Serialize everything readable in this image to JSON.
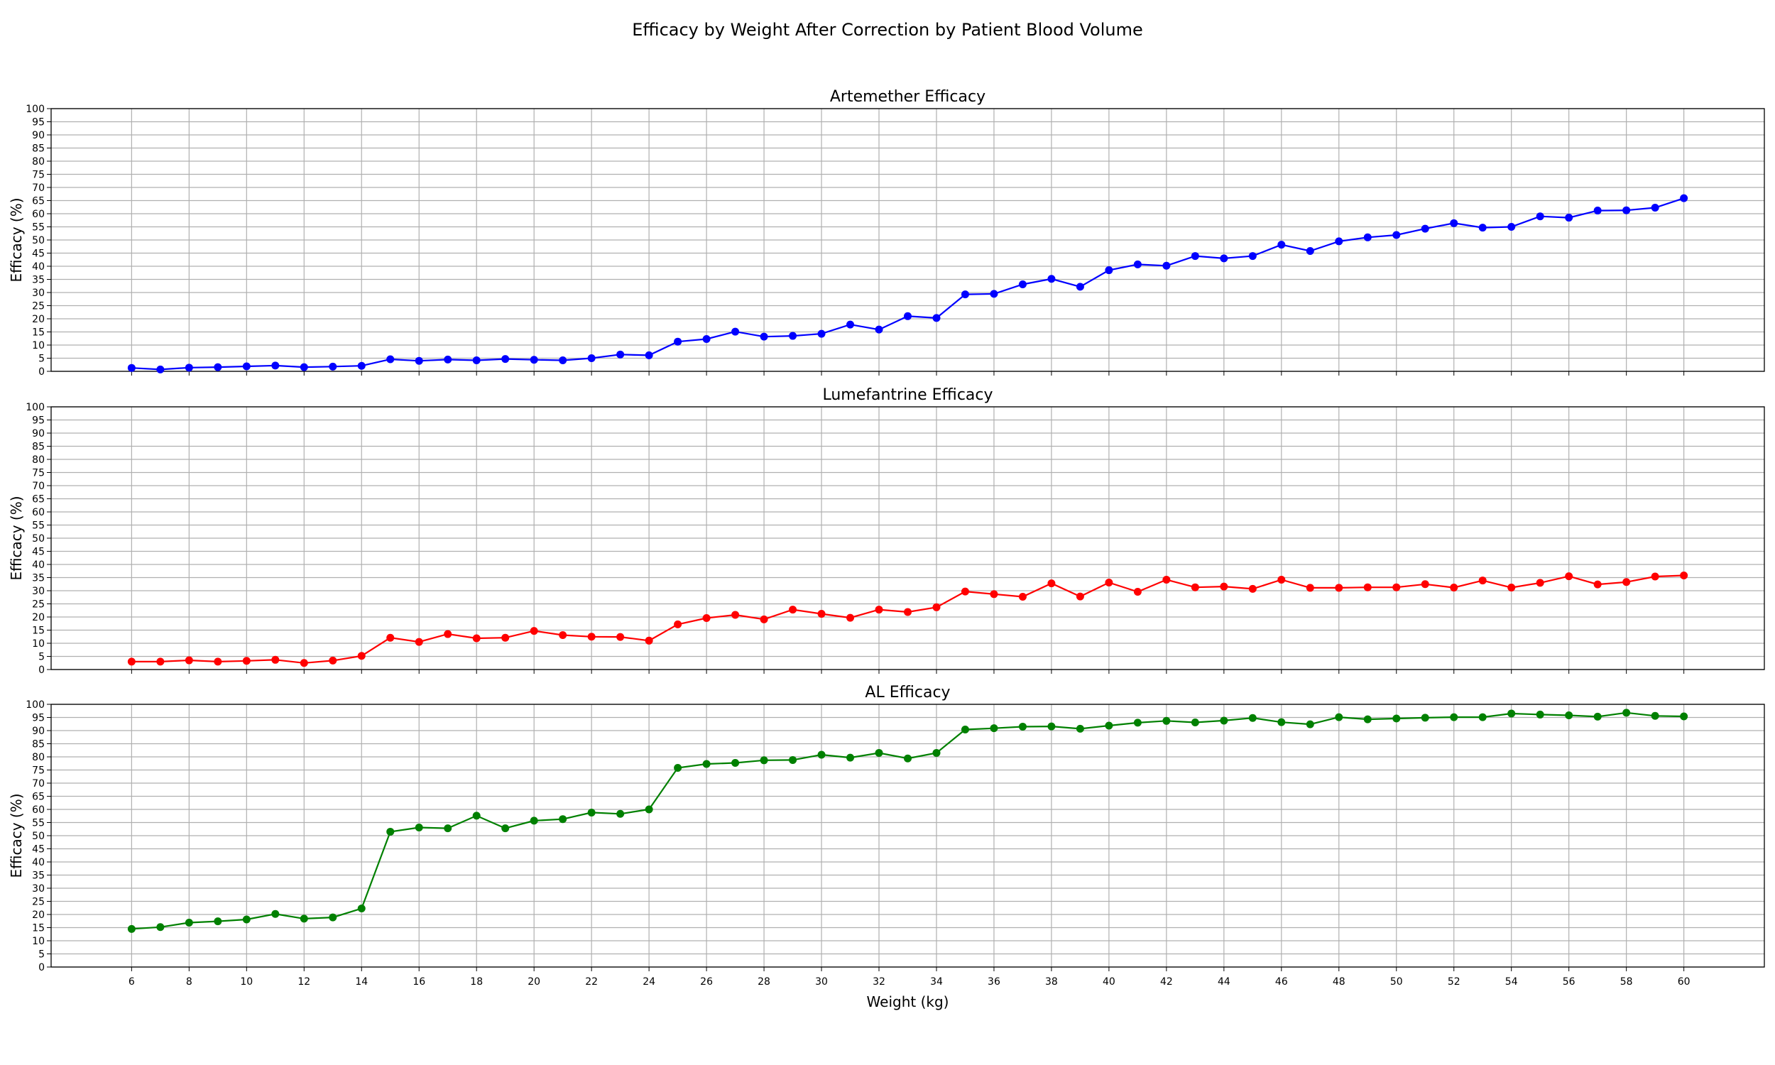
{
  "suptitle": "Efficacy by Weight After Correction by Patient Blood Volume",
  "chart_data": [
    {
      "type": "line",
      "title": "Artemether Efficacy",
      "ylabel": "Efficacy (%)",
      "xlabel": "",
      "color": "#0000ff",
      "x": [
        6,
        7,
        8,
        9,
        10,
        11,
        12,
        13,
        14,
        15,
        16,
        17,
        18,
        19,
        20,
        21,
        22,
        23,
        24,
        25,
        26,
        27,
        28,
        29,
        30,
        31,
        32,
        33,
        34,
        35,
        36,
        37,
        38,
        39,
        40,
        41,
        42,
        43,
        44,
        45,
        46,
        47,
        48,
        49,
        50,
        51,
        52,
        53,
        54,
        55,
        56,
        57,
        58,
        59,
        60
      ],
      "values": [
        1.3,
        0.7,
        1.4,
        1.6,
        1.9,
        2.2,
        1.6,
        1.8,
        2.1,
        4.6,
        4.0,
        4.5,
        4.2,
        4.7,
        4.4,
        4.2,
        5.0,
        6.4,
        6.1,
        11.3,
        12.3,
        15.1,
        13.2,
        13.5,
        14.3,
        17.8,
        15.9,
        21.0,
        20.3,
        29.3,
        29.5,
        33.1,
        35.2,
        32.2,
        38.5,
        40.7,
        40.2,
        43.9,
        43.0,
        43.9,
        48.2,
        45.8,
        49.5,
        51.0,
        51.9,
        54.3,
        56.4,
        54.7,
        55.0,
        59.0,
        58.5,
        61.2,
        61.3,
        62.3,
        65.9
      ],
      "ylim": [
        0,
        100
      ],
      "xlim": [
        3.2,
        62.8
      ],
      "yticks": [
        "0",
        "5",
        "10",
        "15",
        "20",
        "25",
        "30",
        "35",
        "40",
        "45",
        "50",
        "55",
        "60",
        "65",
        "70",
        "75",
        "80",
        "85",
        "90",
        "95",
        "100"
      ],
      "grid": true
    },
    {
      "type": "line",
      "title": "Lumefantrine Efficacy",
      "ylabel": "Efficacy (%)",
      "xlabel": "",
      "color": "#ff0000",
      "x": [
        6,
        7,
        8,
        9,
        10,
        11,
        12,
        13,
        14,
        15,
        16,
        17,
        18,
        19,
        20,
        21,
        22,
        23,
        24,
        25,
        26,
        27,
        28,
        29,
        30,
        31,
        32,
        33,
        34,
        35,
        36,
        37,
        38,
        39,
        40,
        41,
        42,
        43,
        44,
        45,
        46,
        47,
        48,
        49,
        50,
        51,
        52,
        53,
        54,
        55,
        56,
        57,
        58,
        59,
        60
      ],
      "values": [
        3.0,
        3.0,
        3.5,
        3.0,
        3.3,
        3.7,
        2.5,
        3.4,
        5.2,
        12.1,
        10.5,
        13.5,
        11.9,
        12.1,
        14.7,
        13.1,
        12.5,
        12.4,
        11.0,
        17.2,
        19.6,
        20.8,
        19.1,
        22.8,
        21.2,
        19.7,
        22.8,
        21.9,
        23.7,
        29.7,
        28.7,
        27.7,
        32.8,
        27.8,
        33.1,
        29.6,
        34.2,
        31.3,
        31.6,
        30.7,
        34.2,
        31.1,
        31.1,
        31.3,
        31.3,
        32.5,
        31.2,
        33.9,
        31.2,
        33.0,
        35.5,
        32.4,
        33.3,
        35.4,
        35.8
      ],
      "ylim": [
        0,
        100
      ],
      "xlim": [
        3.2,
        62.8
      ],
      "yticks": [
        "0",
        "5",
        "10",
        "15",
        "20",
        "25",
        "30",
        "35",
        "40",
        "45",
        "50",
        "55",
        "60",
        "65",
        "70",
        "75",
        "80",
        "85",
        "90",
        "95",
        "100"
      ],
      "grid": true
    },
    {
      "type": "line",
      "title": "AL Efficacy",
      "ylabel": "Efficacy (%)",
      "xlabel": "Weight (kg)",
      "color": "#008000",
      "x": [
        6,
        7,
        8,
        9,
        10,
        11,
        12,
        13,
        14,
        15,
        16,
        17,
        18,
        19,
        20,
        21,
        22,
        23,
        24,
        25,
        26,
        27,
        28,
        29,
        30,
        31,
        32,
        33,
        34,
        35,
        36,
        37,
        38,
        39,
        40,
        41,
        42,
        43,
        44,
        45,
        46,
        47,
        48,
        49,
        50,
        51,
        52,
        53,
        54,
        55,
        56,
        57,
        58,
        59,
        60
      ],
      "values": [
        14.5,
        15.2,
        16.9,
        17.4,
        18.1,
        20.2,
        18.4,
        18.9,
        22.3,
        51.5,
        53.1,
        52.8,
        57.6,
        52.8,
        55.7,
        56.3,
        58.8,
        58.3,
        60.0,
        75.8,
        77.3,
        77.7,
        78.7,
        78.8,
        80.8,
        79.7,
        81.5,
        79.4,
        81.5,
        90.4,
        90.9,
        91.5,
        91.6,
        90.7,
        91.9,
        93.0,
        93.7,
        93.1,
        93.8,
        94.8,
        93.2,
        92.4,
        95.1,
        94.3,
        94.6,
        94.9,
        95.1,
        95.1,
        96.5,
        96.1,
        95.8,
        95.3,
        96.8,
        95.6,
        95.4
      ],
      "ylim": [
        0,
        100
      ],
      "xlim": [
        3.2,
        62.8
      ],
      "yticks": [
        "0",
        "5",
        "10",
        "15",
        "20",
        "25",
        "30",
        "35",
        "40",
        "45",
        "50",
        "55",
        "60",
        "65",
        "70",
        "75",
        "80",
        "85",
        "90",
        "95",
        "100"
      ],
      "xticks": [
        "6",
        "8",
        "10",
        "12",
        "14",
        "16",
        "18",
        "20",
        "22",
        "24",
        "26",
        "28",
        "30",
        "32",
        "34",
        "36",
        "38",
        "40",
        "42",
        "44",
        "46",
        "48",
        "50",
        "52",
        "54",
        "56",
        "58",
        "60"
      ],
      "grid": true
    }
  ]
}
